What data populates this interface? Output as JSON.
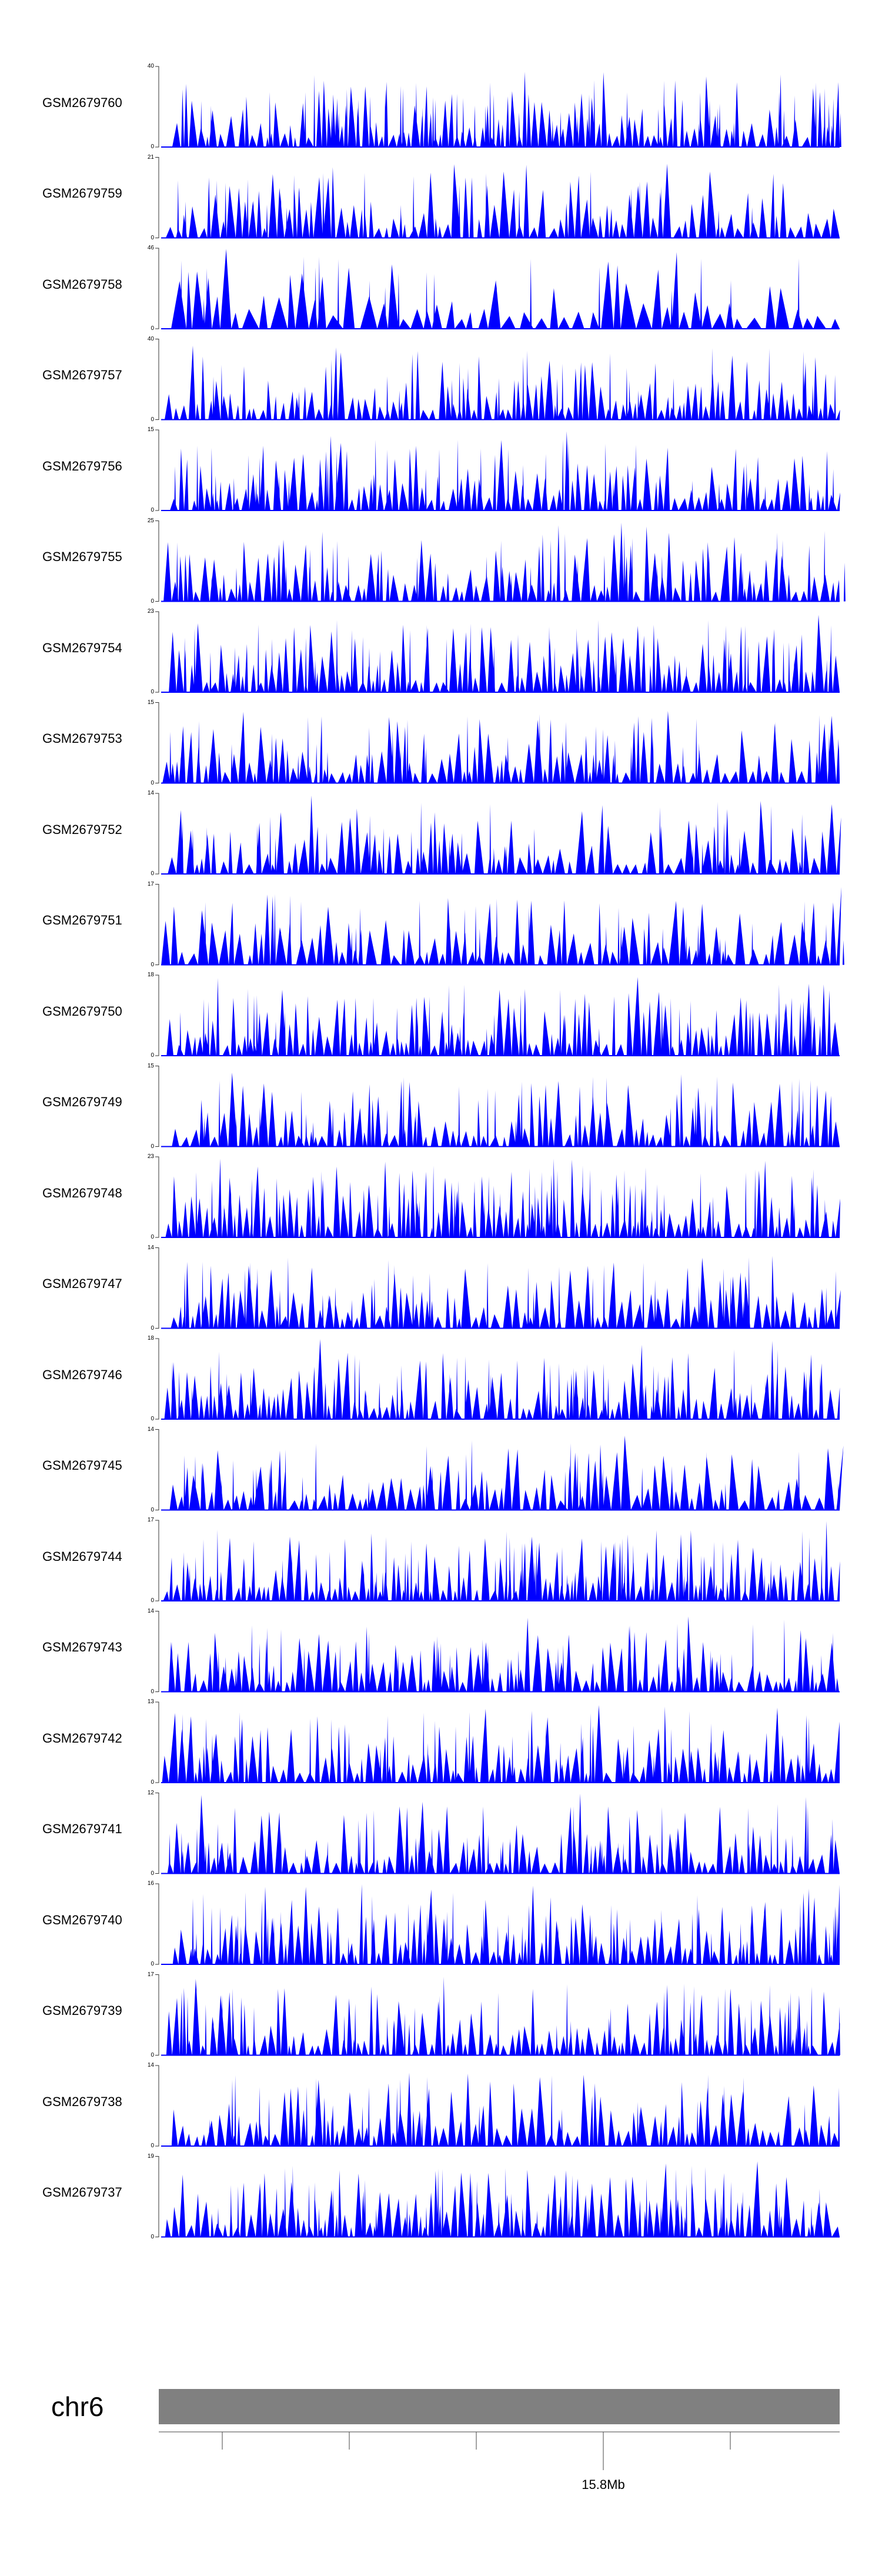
{
  "chart_data": {
    "type": "area",
    "fill_color": "#0000ff",
    "ideogram_color": "#808080",
    "chromosome": "chr6",
    "position_label": "15.8Mb",
    "tracks": [
      {
        "name": "GSM2679760",
        "ymax": "40",
        "ymin": "0",
        "peak_count": 118,
        "seed": 11
      },
      {
        "name": "GSM2679759",
        "ymax": "21",
        "ymin": "0",
        "peak_count": 110,
        "seed": 12
      },
      {
        "name": "GSM2679758",
        "ymax": "46",
        "ymin": "0",
        "peak_count": 62,
        "seed": 13
      },
      {
        "name": "GSM2679757",
        "ymax": "40",
        "ymin": "0",
        "peak_count": 120,
        "seed": 14
      },
      {
        "name": "GSM2679756",
        "ymax": "15",
        "ymin": "0",
        "peak_count": 116,
        "seed": 15
      },
      {
        "name": "GSM2679755",
        "ymax": "25",
        "ymin": "0",
        "peak_count": 112,
        "seed": 16
      },
      {
        "name": "GSM2679754",
        "ymax": "23",
        "ymin": "0",
        "peak_count": 118,
        "seed": 17
      },
      {
        "name": "GSM2679753",
        "ymax": "15",
        "ymin": "0",
        "peak_count": 112,
        "seed": 18
      },
      {
        "name": "GSM2679752",
        "ymax": "14",
        "ymin": "0",
        "peak_count": 100,
        "seed": 19
      },
      {
        "name": "GSM2679751",
        "ymax": "17",
        "ymin": "0",
        "peak_count": 96,
        "seed": 20
      },
      {
        "name": "GSM2679750",
        "ymax": "18",
        "ymin": "0",
        "peak_count": 122,
        "seed": 21
      },
      {
        "name": "GSM2679749",
        "ymax": "15",
        "ymin": "0",
        "peak_count": 112,
        "seed": 22
      },
      {
        "name": "GSM2679748",
        "ymax": "23",
        "ymin": "0",
        "peak_count": 126,
        "seed": 23
      },
      {
        "name": "GSM2679747",
        "ymax": "14",
        "ymin": "0",
        "peak_count": 106,
        "seed": 24
      },
      {
        "name": "GSM2679746",
        "ymax": "18",
        "ymin": "0",
        "peak_count": 120,
        "seed": 25
      },
      {
        "name": "GSM2679745",
        "ymax": "14",
        "ymin": "0",
        "peak_count": 96,
        "seed": 26
      },
      {
        "name": "GSM2679744",
        "ymax": "17",
        "ymin": "0",
        "peak_count": 126,
        "seed": 27
      },
      {
        "name": "GSM2679743",
        "ymax": "14",
        "ymin": "0",
        "peak_count": 112,
        "seed": 28
      },
      {
        "name": "GSM2679742",
        "ymax": "13",
        "ymin": "0",
        "peak_count": 110,
        "seed": 29
      },
      {
        "name": "GSM2679741",
        "ymax": "12",
        "ymin": "0",
        "peak_count": 118,
        "seed": 30
      },
      {
        "name": "GSM2679740",
        "ymax": "16",
        "ymin": "0",
        "peak_count": 124,
        "seed": 31
      },
      {
        "name": "GSM2679739",
        "ymax": "17",
        "ymin": "0",
        "peak_count": 118,
        "seed": 32
      },
      {
        "name": "GSM2679738",
        "ymax": "14",
        "ymin": "0",
        "peak_count": 108,
        "seed": 33
      },
      {
        "name": "GSM2679737",
        "ymax": "19",
        "ymin": "0",
        "peak_count": 116,
        "seed": 34
      }
    ]
  }
}
